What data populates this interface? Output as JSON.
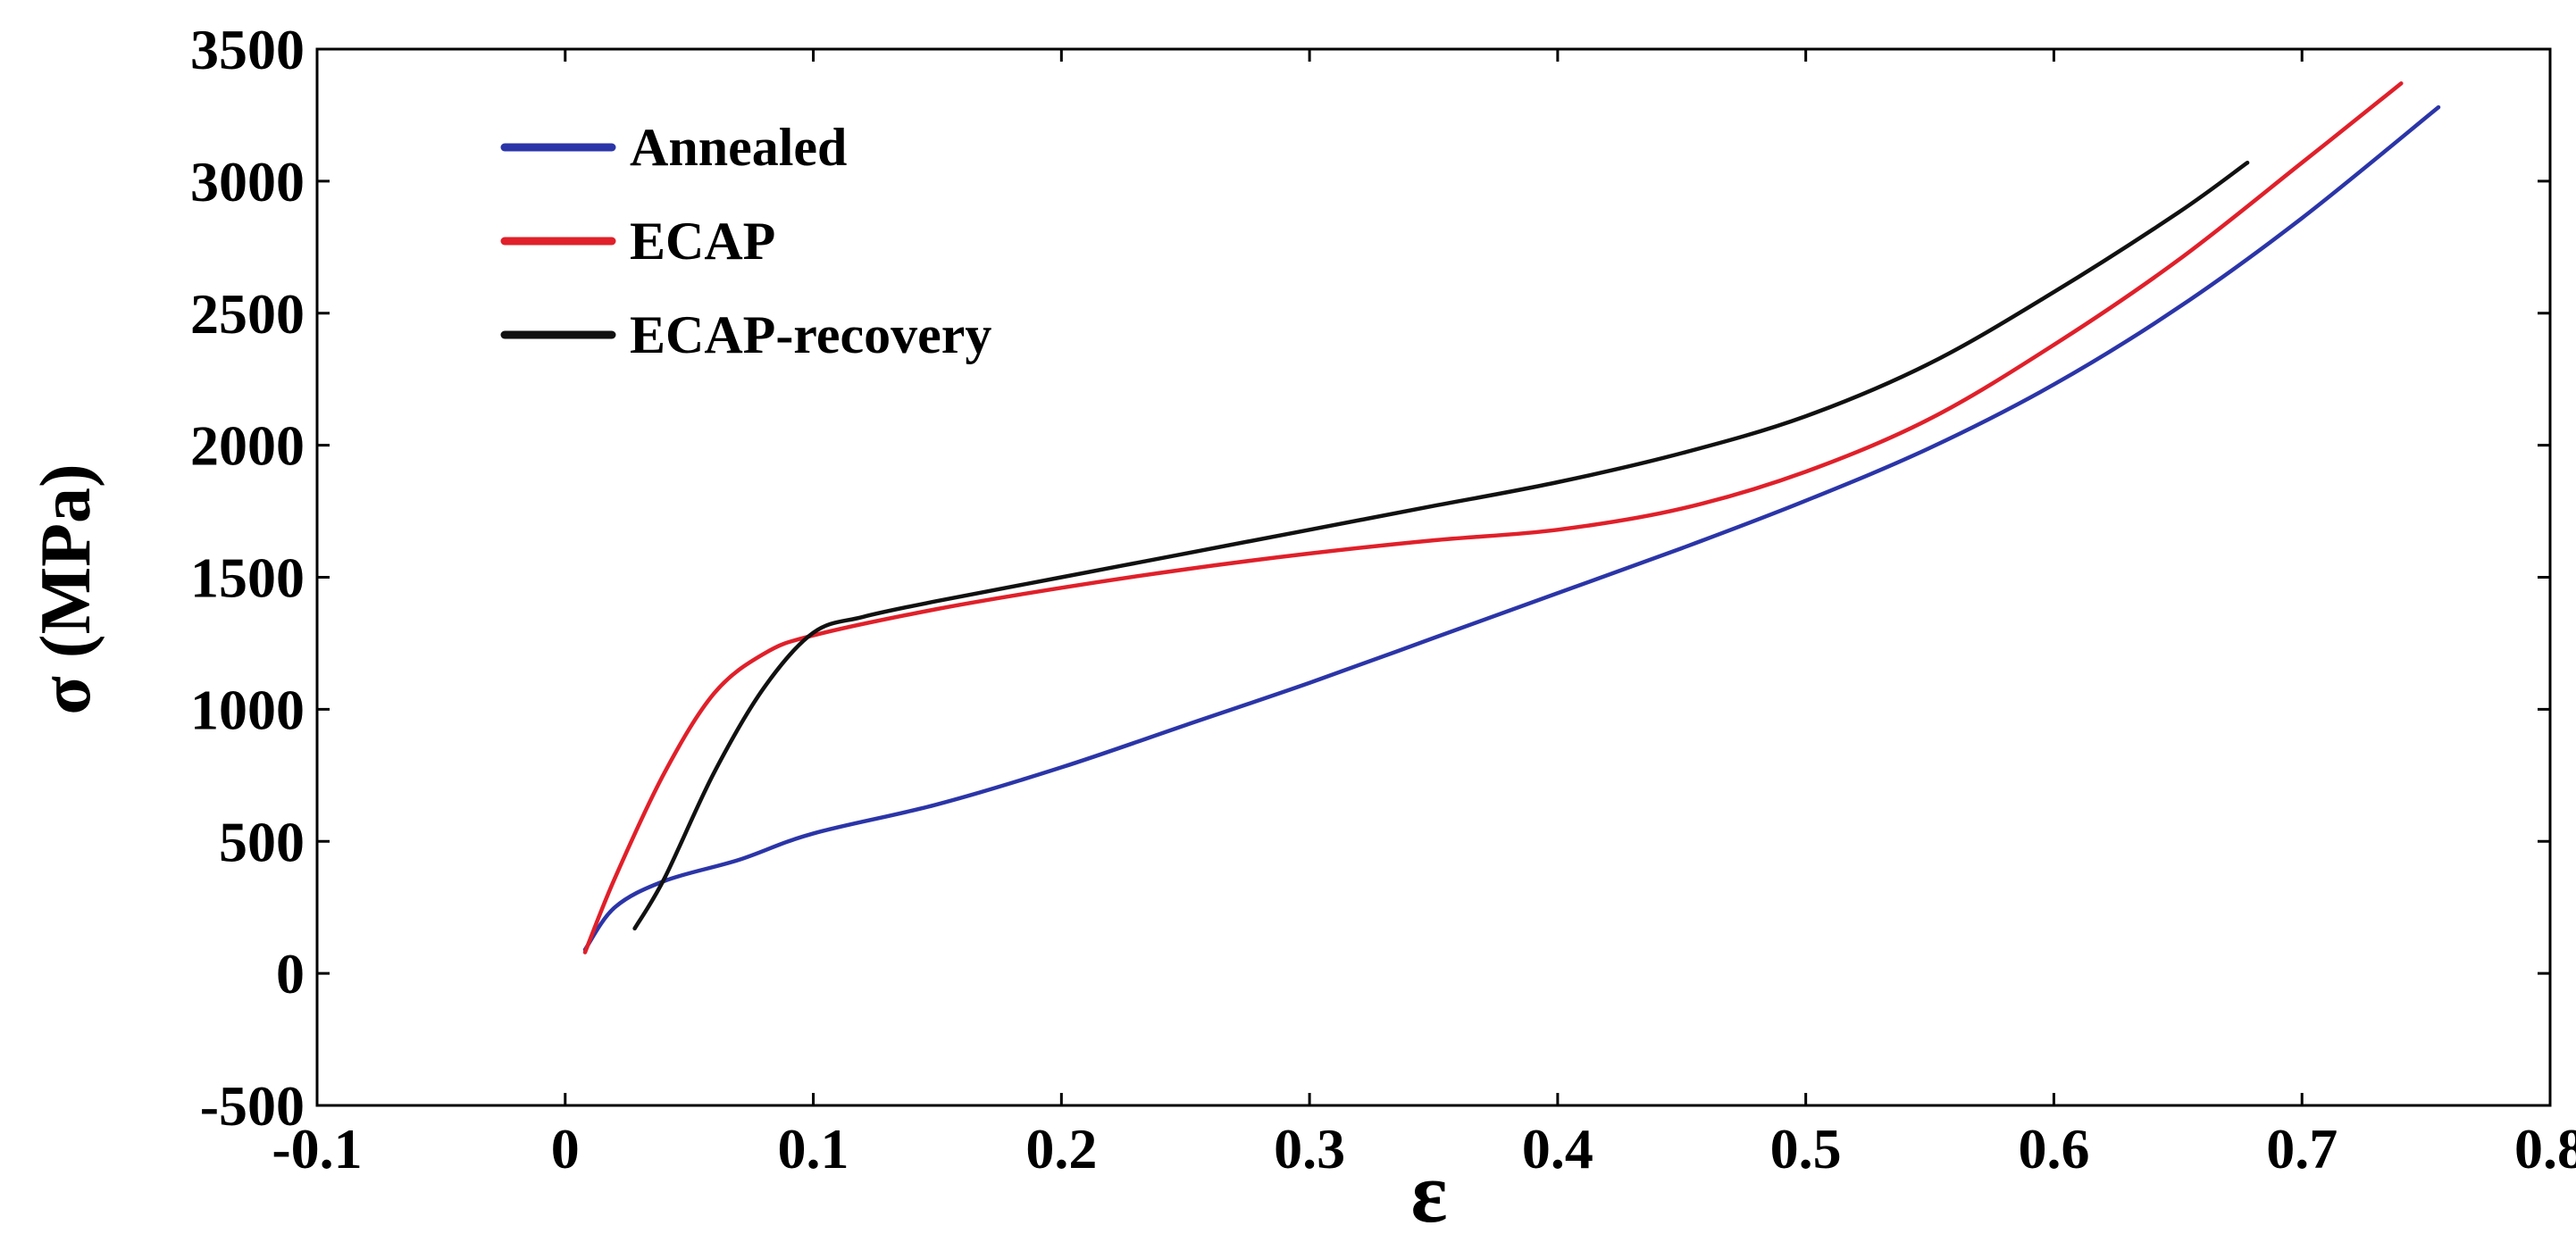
{
  "chart_data": {
    "type": "line",
    "title": "",
    "xlabel": "ε",
    "ylabel": "σ (MPa)",
    "xlim": [
      -0.1,
      0.8
    ],
    "ylim": [
      -500,
      3500
    ],
    "xticks": [
      -0.1,
      0,
      0.1,
      0.2,
      0.3,
      0.4,
      0.5,
      0.6,
      0.7,
      0.8
    ],
    "xtick_labels": [
      "-0.1",
      "0",
      "0.1",
      "0.2",
      "0.3",
      "0.4",
      "0.5",
      "0.6",
      "0.7",
      "0.8"
    ],
    "yticks": [
      -500,
      0,
      500,
      1000,
      1500,
      2000,
      2500,
      3000,
      3500
    ],
    "ytick_labels": [
      "-500",
      "0",
      "500",
      "1000",
      "1500",
      "2000",
      "2500",
      "3000",
      "3500"
    ],
    "grid": false,
    "legend_position": "top-left",
    "series": [
      {
        "name": "Annealed",
        "color": "#2b35a8",
        "x": [
          0.008,
          0.02,
          0.04,
          0.07,
          0.1,
          0.15,
          0.2,
          0.25,
          0.3,
          0.35,
          0.4,
          0.45,
          0.5,
          0.55,
          0.6,
          0.65,
          0.7,
          0.755
        ],
        "y": [
          90,
          250,
          350,
          430,
          530,
          640,
          780,
          940,
          1100,
          1270,
          1440,
          1610,
          1790,
          1990,
          2230,
          2520,
          2860,
          3280
        ]
      },
      {
        "name": "ECAP",
        "color": "#e0202a",
        "x": [
          0.008,
          0.02,
          0.04,
          0.06,
          0.08,
          0.1,
          0.15,
          0.2,
          0.25,
          0.3,
          0.35,
          0.4,
          0.45,
          0.5,
          0.55,
          0.6,
          0.65,
          0.7,
          0.74
        ],
        "y": [
          80,
          360,
          760,
          1060,
          1210,
          1280,
          1380,
          1460,
          1530,
          1590,
          1640,
          1680,
          1760,
          1900,
          2100,
          2380,
          2700,
          3070,
          3370
        ]
      },
      {
        "name": "ECAP-recovery",
        "color": "#111111",
        "x": [
          0.028,
          0.04,
          0.06,
          0.08,
          0.1,
          0.12,
          0.15,
          0.2,
          0.25,
          0.3,
          0.35,
          0.4,
          0.45,
          0.5,
          0.55,
          0.6,
          0.65,
          0.678
        ],
        "y": [
          170,
          360,
          760,
          1080,
          1290,
          1350,
          1410,
          1500,
          1590,
          1680,
          1770,
          1860,
          1970,
          2110,
          2310,
          2580,
          2880,
          3070
        ]
      }
    ]
  }
}
